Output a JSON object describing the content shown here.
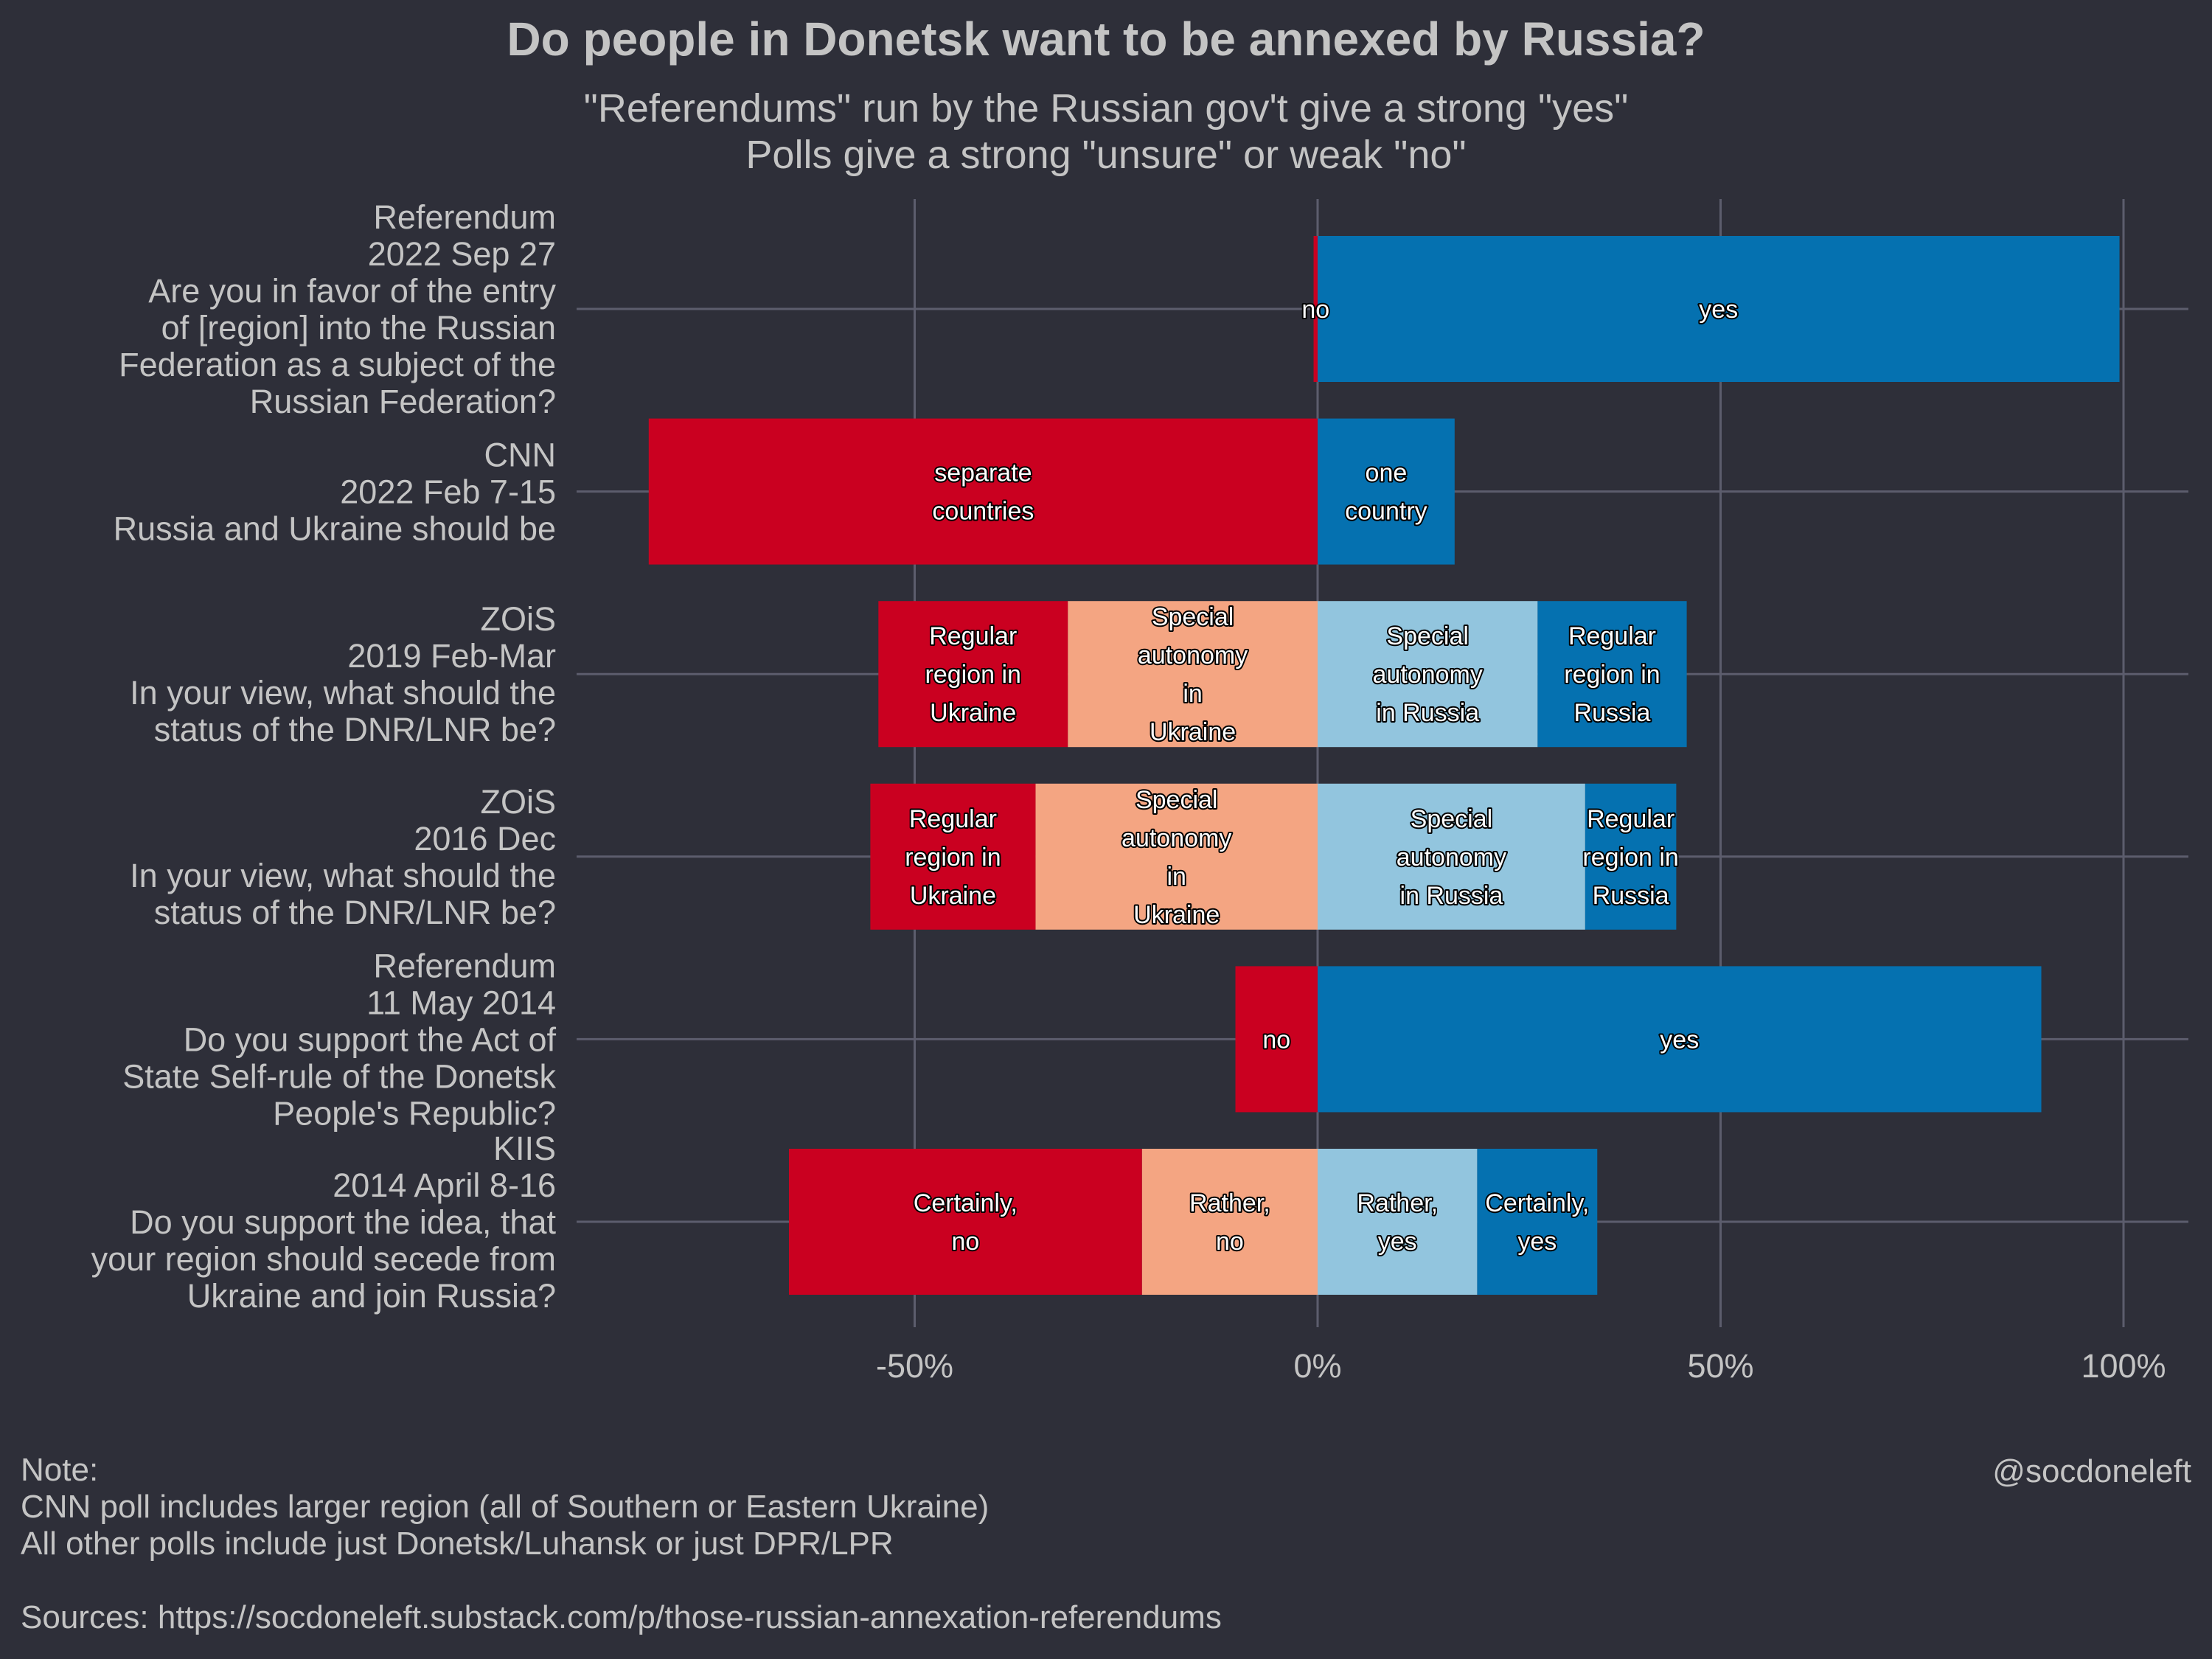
{
  "title": "Do people in Donetsk want to be annexed by Russia?",
  "subtitle": [
    "\"Referendums\" run by the Russian gov't give a strong \"yes\"",
    "Polls give a strong \"unsure\" or weak \"no\""
  ],
  "note_lines": [
    "Note:",
    "CNN poll includes larger region (all of Southern or Eastern Ukraine)",
    "All other polls include just Donetsk/Luhansk or just DPR/LPR",
    "",
    "Sources: https://socdoneleft.substack.com/p/those-russian-annexation-referendums"
  ],
  "credit": "@socdoneleft",
  "colors": {
    "background": "#2e2f39",
    "grid": "#5c5d6d",
    "strong_no": "#ca0020",
    "weak_no": "#f4a582",
    "weak_yes": "#92c5de",
    "strong_yes": "#0571b0"
  },
  "chart_data": {
    "type": "bar",
    "orientation": "horizontal",
    "stacked": "diverging",
    "xlim": [
      -100,
      110
    ],
    "x_ticks": [
      -50,
      0,
      50,
      100
    ],
    "x_tick_labels": [
      "-50%",
      "0%",
      "50%",
      "100%"
    ],
    "grid": true,
    "categories": [
      [
        "Referendum",
        "2022 Sep 27",
        "Are you in favor of the entry",
        "of [region] into the Russian",
        "Federation as a subject of the",
        "Russian Federation?"
      ],
      [
        "CNN",
        "2022 Feb 7-15",
        "Russia and Ukraine should be"
      ],
      [
        "ZOiS",
        "2019 Feb-Mar",
        "In your view, what should the",
        "status of the DNR/LNR be?"
      ],
      [
        "ZOiS",
        "2016 Dec",
        "In your view, what should the",
        "status of the DNR/LNR be?"
      ],
      [
        "Referendum",
        "11 May 2014",
        "Do you support the Act of",
        "State Self-rule of the Donetsk",
        "People's Republic?"
      ],
      [
        "KIIS",
        "2014 April 8-16",
        "Do you support the idea, that",
        "your region should secede from",
        "Ukraine and join Russia?"
      ]
    ],
    "bars": [
      {
        "segments": [
          {
            "label": [
              "no"
            ],
            "value": -0.5,
            "color": "strong_no"
          },
          {
            "label": [
              "yes"
            ],
            "value": 99.5,
            "color": "strong_yes"
          }
        ]
      },
      {
        "segments": [
          {
            "label": [
              "separate",
              "countries"
            ],
            "value": -83,
            "color": "strong_no"
          },
          {
            "label": [
              "one",
              "country"
            ],
            "value": 17,
            "color": "strong_yes"
          }
        ]
      },
      {
        "segments": [
          {
            "label": [
              "Regular",
              "region in",
              "Ukraine"
            ],
            "value": -23.5,
            "color": "strong_no"
          },
          {
            "label": [
              "Special",
              "autonomy",
              "in",
              "Ukraine"
            ],
            "value": -31,
            "color": "weak_no"
          },
          {
            "label": [
              "Special",
              "autonomy",
              "in Russia"
            ],
            "value": 27.3,
            "color": "weak_yes"
          },
          {
            "label": [
              "Regular",
              "region in",
              "Russia"
            ],
            "value": 18.5,
            "color": "strong_yes"
          }
        ]
      },
      {
        "segments": [
          {
            "label": [
              "Regular",
              "region in",
              "Ukraine"
            ],
            "value": -20.5,
            "color": "strong_no"
          },
          {
            "label": [
              "Special",
              "autonomy",
              "in",
              "Ukraine"
            ],
            "value": -35,
            "color": "weak_no"
          },
          {
            "label": [
              "Special",
              "autonomy",
              "in Russia"
            ],
            "value": 33.2,
            "color": "weak_yes"
          },
          {
            "label": [
              "Regular",
              "region in",
              "Russia"
            ],
            "value": 11.3,
            "color": "strong_yes"
          }
        ]
      },
      {
        "segments": [
          {
            "label": [
              "no"
            ],
            "value": -10.2,
            "color": "strong_no"
          },
          {
            "label": [
              "yes"
            ],
            "value": 89.8,
            "color": "strong_yes"
          }
        ]
      },
      {
        "segments": [
          {
            "label": [
              "Certainly,",
              "no"
            ],
            "value": -43.8,
            "color": "strong_no"
          },
          {
            "label": [
              "Rather,",
              "no"
            ],
            "value": -21.8,
            "color": "weak_no"
          },
          {
            "label": [
              "Rather,",
              "yes"
            ],
            "value": 19.8,
            "color": "weak_yes"
          },
          {
            "label": [
              "Certainly,",
              "yes"
            ],
            "value": 14.9,
            "color": "strong_yes"
          }
        ]
      }
    ]
  }
}
